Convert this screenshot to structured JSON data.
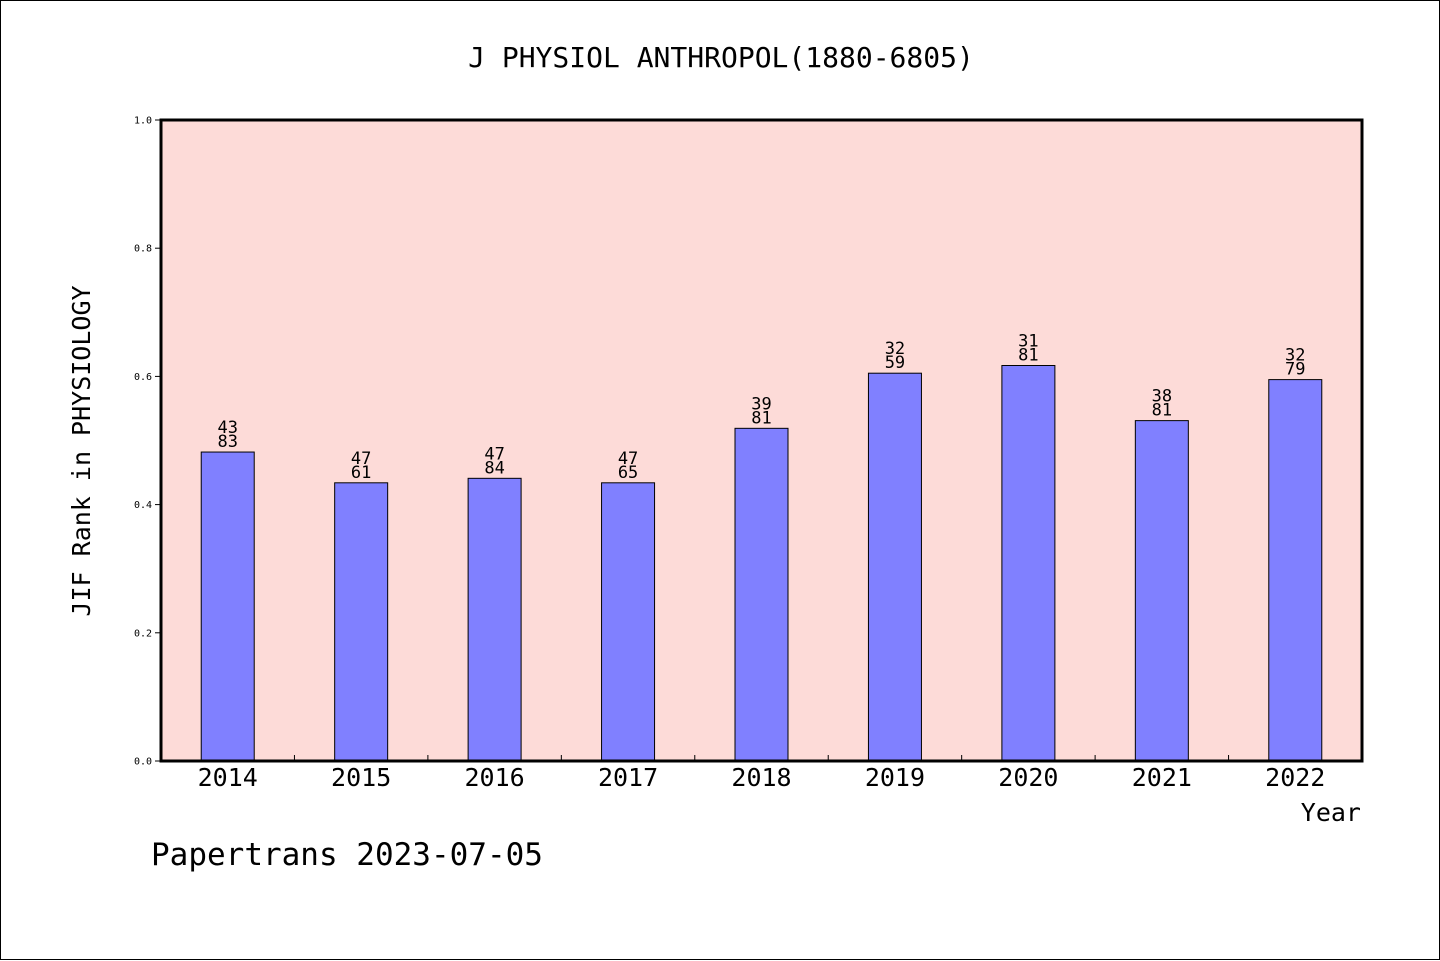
{
  "chart_data": {
    "type": "bar",
    "title": "J PHYSIOL ANTHROPOL(1880-6805)",
    "xlabel": "Year",
    "ylabel": "JIF Rank in PHYSIOLOGY",
    "ylim": [
      0,
      1.0
    ],
    "yticks": [
      "0.0",
      "0.2",
      "0.4",
      "0.6",
      "0.8",
      "1.0"
    ],
    "grid": false,
    "categories": [
      "2014",
      "2015",
      "2016",
      "2017",
      "2018",
      "2019",
      "2020",
      "2021",
      "2022"
    ],
    "values": [
      0.482,
      0.434,
      0.441,
      0.434,
      0.519,
      0.605,
      0.617,
      0.531,
      0.595
    ],
    "labels_top": [
      "43",
      "47",
      "47",
      "47",
      "39",
      "32",
      "31",
      "38",
      "32"
    ],
    "labels_bottom": [
      "83",
      "61",
      "84",
      "65",
      "81",
      "59",
      "81",
      "81",
      "79"
    ],
    "colors": {
      "plot_background": "#fddbd8",
      "bar_fill": "#8080ff",
      "bar_stroke": "#000000",
      "axis": "#000000"
    }
  },
  "footer": "Papertrans 2023-07-05"
}
